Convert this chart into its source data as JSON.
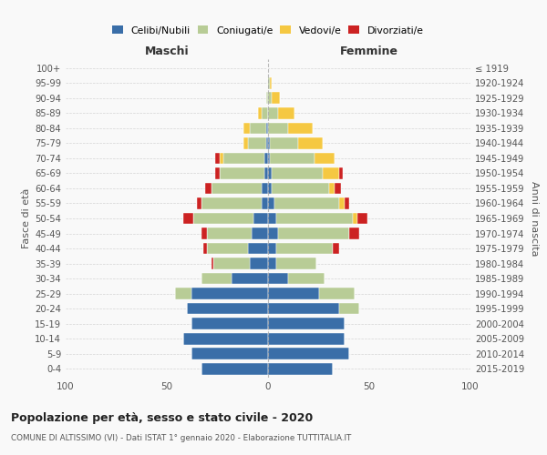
{
  "age_groups": [
    "0-4",
    "5-9",
    "10-14",
    "15-19",
    "20-24",
    "25-29",
    "30-34",
    "35-39",
    "40-44",
    "45-49",
    "50-54",
    "55-59",
    "60-64",
    "65-69",
    "70-74",
    "75-79",
    "80-84",
    "85-89",
    "90-94",
    "95-99",
    "100+"
  ],
  "birth_years": [
    "2015-2019",
    "2010-2014",
    "2005-2009",
    "2000-2004",
    "1995-1999",
    "1990-1994",
    "1985-1989",
    "1980-1984",
    "1975-1979",
    "1970-1974",
    "1965-1969",
    "1960-1964",
    "1955-1959",
    "1950-1954",
    "1945-1949",
    "1940-1944",
    "1935-1939",
    "1930-1934",
    "1925-1929",
    "1920-1924",
    "≤ 1919"
  ],
  "maschi": {
    "celibi": [
      33,
      38,
      42,
      38,
      40,
      38,
      18,
      9,
      10,
      8,
      7,
      3,
      3,
      2,
      2,
      1,
      1,
      0,
      0,
      0,
      0
    ],
    "coniugati": [
      0,
      0,
      0,
      0,
      0,
      8,
      15,
      18,
      20,
      22,
      30,
      30,
      25,
      22,
      20,
      9,
      8,
      3,
      1,
      0,
      0
    ],
    "vedovi": [
      0,
      0,
      0,
      0,
      0,
      0,
      0,
      0,
      0,
      0,
      0,
      0,
      0,
      0,
      2,
      2,
      3,
      2,
      0,
      0,
      0
    ],
    "divorziati": [
      0,
      0,
      0,
      0,
      0,
      0,
      0,
      1,
      2,
      3,
      5,
      2,
      3,
      2,
      2,
      0,
      0,
      0,
      0,
      0,
      0
    ]
  },
  "femmine": {
    "nubili": [
      32,
      40,
      38,
      38,
      35,
      25,
      10,
      4,
      4,
      5,
      4,
      3,
      2,
      2,
      1,
      1,
      0,
      0,
      0,
      0,
      0
    ],
    "coniugate": [
      0,
      0,
      0,
      0,
      10,
      18,
      18,
      20,
      28,
      35,
      38,
      32,
      28,
      25,
      22,
      14,
      10,
      5,
      2,
      1,
      0
    ],
    "vedove": [
      0,
      0,
      0,
      0,
      0,
      0,
      0,
      0,
      0,
      0,
      2,
      3,
      3,
      8,
      10,
      12,
      12,
      8,
      4,
      1,
      0
    ],
    "divorziate": [
      0,
      0,
      0,
      0,
      0,
      0,
      0,
      0,
      3,
      5,
      5,
      2,
      3,
      2,
      0,
      0,
      0,
      0,
      0,
      0,
      0
    ]
  },
  "colors": {
    "celibi": "#3a6ea8",
    "coniugati": "#b8cc96",
    "vedovi": "#f5c842",
    "divorziati": "#cc2222"
  },
  "title": "Popolazione per età, sesso e stato civile - 2020",
  "subtitle": "COMUNE DI ALTISSIMO (VI) - Dati ISTAT 1° gennaio 2020 - Elaborazione TUTTITALIA.IT",
  "xlabel_left": "Maschi",
  "xlabel_right": "Femmine",
  "ylabel_left": "Fasce di età",
  "ylabel_right": "Anni di nascita",
  "legend_labels": [
    "Celibi/Nubili",
    "Coniugati/e",
    "Vedovi/e",
    "Divorziati/e"
  ],
  "xlim": 100,
  "background_color": "#f9f9f9",
  "grid_color": "#cccccc"
}
